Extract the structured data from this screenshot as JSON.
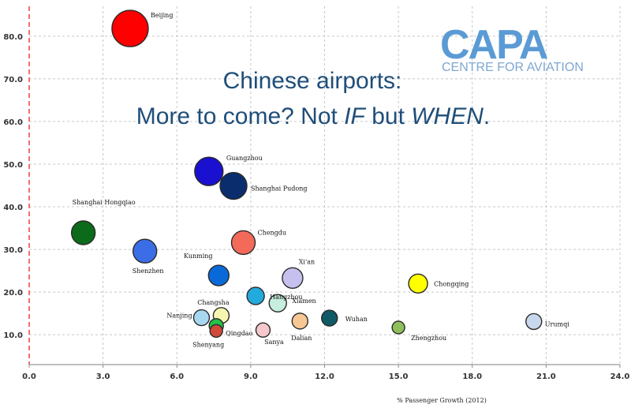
{
  "chart_data": {
    "type": "scatter",
    "title_line1": "Chinese airports:",
    "title_line2_parts": [
      "More to come? Not ",
      "IF",
      " but ",
      "WHEN",
      "."
    ],
    "xlabel": "% Passenger Growth (2012)",
    "ylabel": "",
    "xlim": [
      0,
      24
    ],
    "ylim": [
      3,
      87
    ],
    "x_ticks": [
      "0.0",
      "3.0",
      "6.0",
      "9.0",
      "12.0",
      "15.0",
      "18.0",
      "21.0",
      "24.0"
    ],
    "y_ticks": [
      "10.0",
      "20.0",
      "30.0",
      "40.0",
      "50.0",
      "60.0",
      "70.0",
      "80.0"
    ],
    "grid": true,
    "points": [
      {
        "name": "Beijing",
        "x": 4.1,
        "y": 81.8,
        "size": 23,
        "color": "#ff0000"
      },
      {
        "name": "Guangzhou",
        "x": 7.3,
        "y": 48.3,
        "size": 18,
        "color": "#1a10d0"
      },
      {
        "name": "Shanghai Pudong",
        "x": 8.3,
        "y": 44.9,
        "size": 17,
        "color": "#0a2d6e"
      },
      {
        "name": "Shanghai Hongqiao",
        "x": 2.2,
        "y": 33.9,
        "size": 15,
        "color": "#0b6b1a"
      },
      {
        "name": "Shenzhen",
        "x": 4.7,
        "y": 29.6,
        "size": 15,
        "color": "#3b6ee6"
      },
      {
        "name": "Chengdu",
        "x": 8.7,
        "y": 31.6,
        "size": 15,
        "color": "#f36a5a"
      },
      {
        "name": "Kunming",
        "x": 7.7,
        "y": 23.9,
        "size": 13,
        "color": "#0a69d8"
      },
      {
        "name": "Hangzhou",
        "x": 9.2,
        "y": 19.1,
        "size": 11,
        "color": "#22aadd"
      },
      {
        "name": "Xi'an",
        "x": 10.7,
        "y": 23.3,
        "size": 13,
        "color": "#c6c0ee"
      },
      {
        "name": "Xiamen",
        "x": 10.1,
        "y": 17.4,
        "size": 11,
        "color": "#c5eedc"
      },
      {
        "name": "Chongqing",
        "x": 15.8,
        "y": 22.0,
        "size": 12,
        "color": "#ffff00"
      },
      {
        "name": "Changsha",
        "x": 7.8,
        "y": 14.5,
        "size": 10,
        "color": "#f6f6b0"
      },
      {
        "name": "Nanjing",
        "x": 7.0,
        "y": 14.0,
        "size": 10,
        "color": "#a8d8f0"
      },
      {
        "name": "Qingdao",
        "x": 7.6,
        "y": 12.1,
        "size": 9,
        "color": "#22c24a"
      },
      {
        "name": "Shenyang",
        "x": 7.6,
        "y": 10.9,
        "size": 8,
        "color": "#d04a3a"
      },
      {
        "name": "Sanya",
        "x": 9.5,
        "y": 11.1,
        "size": 9,
        "color": "#f4c8cc"
      },
      {
        "name": "Dalian",
        "x": 11.0,
        "y": 13.2,
        "size": 10,
        "color": "#f8c894"
      },
      {
        "name": "Wuhan",
        "x": 12.2,
        "y": 13.9,
        "size": 10,
        "color": "#0f5a66"
      },
      {
        "name": "Zhengzhou",
        "x": 15.0,
        "y": 11.7,
        "size": 8,
        "color": "#8fbf5a"
      },
      {
        "name": "Urumqi",
        "x": 20.5,
        "y": 13.1,
        "size": 10,
        "color": "#c8d8ec"
      }
    ]
  },
  "logo": {
    "main": "CAPA",
    "sub": "CENTRE FOR AVIATION"
  }
}
